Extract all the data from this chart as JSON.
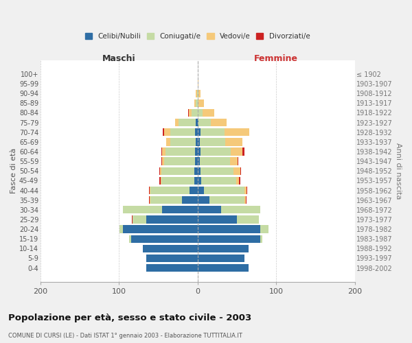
{
  "age_groups": [
    "0-4",
    "5-9",
    "10-14",
    "15-19",
    "20-24",
    "25-29",
    "30-34",
    "35-39",
    "40-44",
    "45-49",
    "50-54",
    "55-59",
    "60-64",
    "65-69",
    "70-74",
    "75-79",
    "80-84",
    "85-89",
    "90-94",
    "95-99",
    "100+"
  ],
  "birth_years": [
    "1998-2002",
    "1993-1997",
    "1988-1992",
    "1983-1987",
    "1978-1982",
    "1973-1977",
    "1968-1972",
    "1963-1967",
    "1958-1962",
    "1953-1957",
    "1948-1952",
    "1943-1947",
    "1938-1942",
    "1933-1937",
    "1928-1932",
    "1923-1927",
    "1918-1922",
    "1913-1917",
    "1908-1912",
    "1903-1907",
    "≤ 1902"
  ],
  "maschi": {
    "celibi": [
      65,
      65,
      70,
      85,
      95,
      65,
      45,
      20,
      10,
      4,
      4,
      3,
      3,
      2,
      3,
      2,
      0,
      0,
      0,
      0,
      0
    ],
    "coniugati": [
      0,
      0,
      0,
      2,
      4,
      18,
      50,
      40,
      50,
      42,
      42,
      40,
      38,
      33,
      32,
      22,
      8,
      2,
      1,
      0,
      0
    ],
    "vedovi": [
      0,
      0,
      0,
      0,
      0,
      0,
      0,
      1,
      1,
      1,
      2,
      2,
      4,
      5,
      8,
      5,
      3,
      2,
      1,
      0,
      0
    ],
    "divorziati": [
      0,
      0,
      0,
      0,
      0,
      1,
      0,
      1,
      1,
      2,
      1,
      1,
      1,
      0,
      1,
      0,
      1,
      0,
      0,
      0,
      0
    ]
  },
  "femmine": {
    "nubili": [
      65,
      60,
      65,
      80,
      80,
      50,
      30,
      15,
      8,
      5,
      4,
      3,
      4,
      3,
      4,
      1,
      0,
      0,
      0,
      0,
      0
    ],
    "coniugate": [
      0,
      0,
      0,
      2,
      10,
      28,
      50,
      45,
      52,
      44,
      42,
      38,
      38,
      32,
      30,
      16,
      6,
      1,
      1,
      0,
      0
    ],
    "vedove": [
      0,
      0,
      0,
      0,
      0,
      0,
      0,
      1,
      2,
      4,
      8,
      10,
      15,
      22,
      32,
      20,
      15,
      7,
      3,
      1,
      0
    ],
    "divorziate": [
      0,
      0,
      0,
      0,
      0,
      0,
      0,
      1,
      1,
      1,
      1,
      1,
      3,
      0,
      0,
      0,
      0,
      0,
      0,
      0,
      0
    ]
  },
  "colors": {
    "celibi": "#2e6da4",
    "coniugati": "#c5dba4",
    "vedovi": "#f5c97a",
    "divorziati": "#cc2222"
  },
  "title": "Popolazione per età, sesso e stato civile - 2003",
  "subtitle": "COMUNE DI CURSI (LE) - Dati ISTAT 1° gennaio 2003 - Elaborazione TUTTITALIA.IT",
  "xlabel_maschi": "Maschi",
  "xlabel_femmine": "Femmine",
  "ylabel_left": "Fasce di età",
  "ylabel_right": "Anni di nascita",
  "xlim": 200,
  "legend_labels": [
    "Celibi/Nubili",
    "Coniugati/e",
    "Vedovi/e",
    "Divorziati/e"
  ],
  "background_color": "#f0f0f0",
  "plot_bg_color": "#ffffff"
}
